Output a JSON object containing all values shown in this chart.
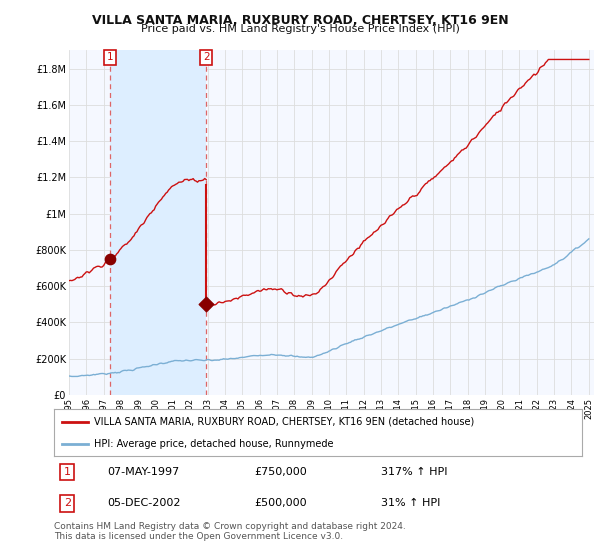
{
  "title": "VILLA SANTA MARIA, RUXBURY ROAD, CHERTSEY, KT16 9EN",
  "subtitle": "Price paid vs. HM Land Registry's House Price Index (HPI)",
  "hpi_label": "HPI: Average price, detached house, Runnymede",
  "property_label": "VILLA SANTA MARIA, RUXBURY ROAD, CHERTSEY, KT16 9EN (detached house)",
  "sale1_date": "07-MAY-1997",
  "sale1_price": 750000,
  "sale1_hpi": "317% ↑ HPI",
  "sale2_date": "05-DEC-2002",
  "sale2_price": 500000,
  "sale2_hpi": "31% ↑ HPI",
  "footer": "Contains HM Land Registry data © Crown copyright and database right 2024.\nThis data is licensed under the Open Government Licence v3.0.",
  "ylim_min": 0,
  "ylim_max": 1900000,
  "ytick_vals": [
    0,
    200000,
    400000,
    600000,
    800000,
    1000000,
    1200000,
    1400000,
    1600000,
    1800000
  ],
  "ytick_labels": [
    "£0",
    "£200K",
    "£400K",
    "£600K",
    "£800K",
    "£1M",
    "£1.2M",
    "£1.4M",
    "£1.6M",
    "£1.8M"
  ],
  "hpi_color": "#7bafd4",
  "property_color": "#cc1111",
  "sale_marker_color": "#880000",
  "dashed_line_color": "#dd6666",
  "shade_color": "#ddeeff",
  "bg_color": "#ffffff",
  "plot_bg_color": "#f5f8ff",
  "grid_color": "#dddddd",
  "legend_box_color": "#cc1111",
  "sale1_x_year": 1997.35,
  "sale2_x_year": 2002.92,
  "xmin": 1995.0,
  "xmax": 2025.3
}
